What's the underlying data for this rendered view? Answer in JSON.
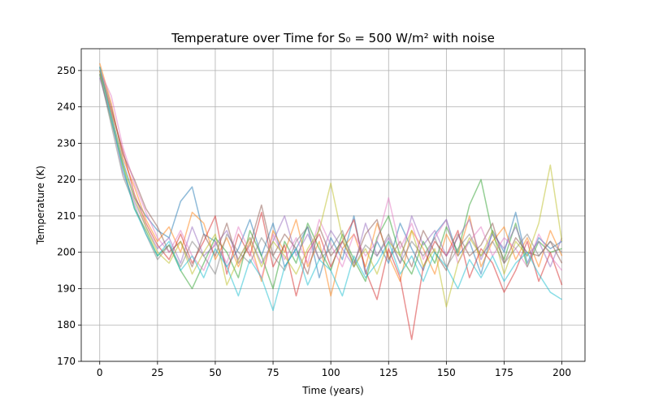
{
  "chart_data": {
    "type": "line",
    "title": "Temperature over Time for S₀ = 500 W/m² with noise",
    "xlabel": "Time (years)",
    "ylabel": "Temperature (K)",
    "xlim": [
      -8,
      210
    ],
    "ylim": [
      170,
      256
    ],
    "xticks": [
      0,
      25,
      50,
      75,
      100,
      125,
      150,
      175,
      200
    ],
    "yticks": [
      170,
      180,
      190,
      200,
      210,
      220,
      230,
      240,
      250
    ],
    "grid": true,
    "legend": "none",
    "colors": [
      "#1f77b4",
      "#ff7f0e",
      "#2ca02c",
      "#d62728",
      "#9467bd",
      "#8c564b",
      "#e377c2",
      "#7f7f7f",
      "#bcbd22",
      "#17becf"
    ],
    "x": [
      0,
      5,
      10,
      15,
      20,
      25,
      30,
      35,
      40,
      45,
      50,
      55,
      60,
      65,
      70,
      75,
      80,
      85,
      90,
      95,
      100,
      105,
      110,
      115,
      120,
      125,
      130,
      135,
      140,
      145,
      150,
      155,
      160,
      165,
      170,
      175,
      180,
      185,
      190,
      195,
      200
    ],
    "series": [
      {
        "values": [
          250,
          238,
          225,
          215,
          210,
          206,
          204,
          214,
          218,
          205,
          203,
          196,
          201,
          209,
          199,
          208,
          196,
          201,
          207,
          193,
          204,
          198,
          210,
          194,
          203,
          197,
          208,
          201,
          195,
          205,
          209,
          199,
          203,
          194,
          206,
          200,
          211,
          197,
          204,
          201,
          203
        ]
      },
      {
        "values": [
          252,
          241,
          226,
          218,
          209,
          203,
          207,
          200,
          211,
          208,
          198,
          204,
          196,
          203,
          192,
          206,
          200,
          209,
          196,
          203,
          188,
          201,
          205,
          196,
          208,
          199,
          192,
          206,
          201,
          194,
          205,
          199,
          210,
          196,
          203,
          207,
          198,
          204,
          196,
          206,
          199
        ]
      },
      {
        "values": [
          249,
          236,
          224,
          212,
          206,
          199,
          202,
          195,
          190,
          197,
          204,
          200,
          193,
          206,
          199,
          190,
          203,
          197,
          208,
          201,
          195,
          205,
          198,
          192,
          204,
          210,
          199,
          194,
          203,
          197,
          207,
          200,
          213,
          220,
          205,
          198,
          208,
          196,
          203,
          200,
          201
        ]
      },
      {
        "values": [
          250,
          239,
          228,
          216,
          208,
          202,
          198,
          205,
          197,
          203,
          210,
          194,
          205,
          199,
          211,
          196,
          202,
          188,
          200,
          205,
          196,
          203,
          209,
          195,
          187,
          201,
          193,
          176,
          196,
          203,
          199,
          206,
          193,
          201,
          197,
          189,
          195,
          203,
          192,
          200,
          191
        ]
      },
      {
        "values": [
          248,
          237,
          222,
          214,
          207,
          201,
          204,
          197,
          207,
          199,
          202,
          206,
          198,
          204,
          197,
          203,
          210,
          199,
          205,
          198,
          206,
          201,
          196,
          208,
          199,
          204,
          197,
          210,
          202,
          206,
          199,
          204,
          209,
          198,
          205,
          201,
          207,
          199,
          203,
          196,
          204
        ]
      },
      {
        "values": [
          251,
          240,
          227,
          220,
          212,
          207,
          200,
          203,
          196,
          205,
          199,
          208,
          197,
          202,
          213,
          199,
          205,
          201,
          194,
          207,
          199,
          203,
          197,
          205,
          209,
          198,
          203,
          196,
          206,
          200,
          195,
          205,
          199,
          202,
          208,
          197,
          204,
          200,
          199,
          203,
          197
        ]
      },
      {
        "values": [
          250,
          243,
          229,
          219,
          211,
          204,
          200,
          206,
          199,
          195,
          203,
          197,
          207,
          200,
          193,
          205,
          198,
          204,
          197,
          209,
          202,
          196,
          205,
          199,
          203,
          215,
          201,
          208,
          198,
          204,
          209,
          197,
          203,
          207,
          199,
          204,
          201,
          196,
          205,
          199,
          195
        ]
      },
      {
        "values": [
          249,
          235,
          221,
          213,
          205,
          198,
          202,
          196,
          203,
          199,
          194,
          205,
          200,
          197,
          204,
          199,
          195,
          203,
          207,
          198,
          201,
          206,
          196,
          202,
          199,
          205,
          197,
          203,
          199,
          204,
          196,
          201,
          205,
          199,
          203,
          197,
          201,
          205,
          199,
          203,
          200
        ]
      },
      {
        "values": [
          250,
          238,
          224,
          215,
          207,
          200,
          197,
          203,
          194,
          200,
          205,
          191,
          198,
          204,
          196,
          203,
          199,
          194,
          201,
          206,
          219,
          204,
          196,
          201,
          194,
          203,
          199,
          206,
          196,
          201,
          185,
          197,
          204,
          199,
          206,
          194,
          203,
          199,
          208,
          224,
          203
        ]
      },
      {
        "values": [
          251,
          237,
          223,
          212,
          205,
          199,
          203,
          195,
          199,
          193,
          201,
          196,
          188,
          198,
          193,
          184,
          196,
          201,
          191,
          198,
          195,
          188,
          199,
          193,
          197,
          203,
          194,
          199,
          192,
          200,
          196,
          190,
          198,
          193,
          199,
          192,
          197,
          200,
          194,
          189,
          187
        ]
      }
    ]
  }
}
